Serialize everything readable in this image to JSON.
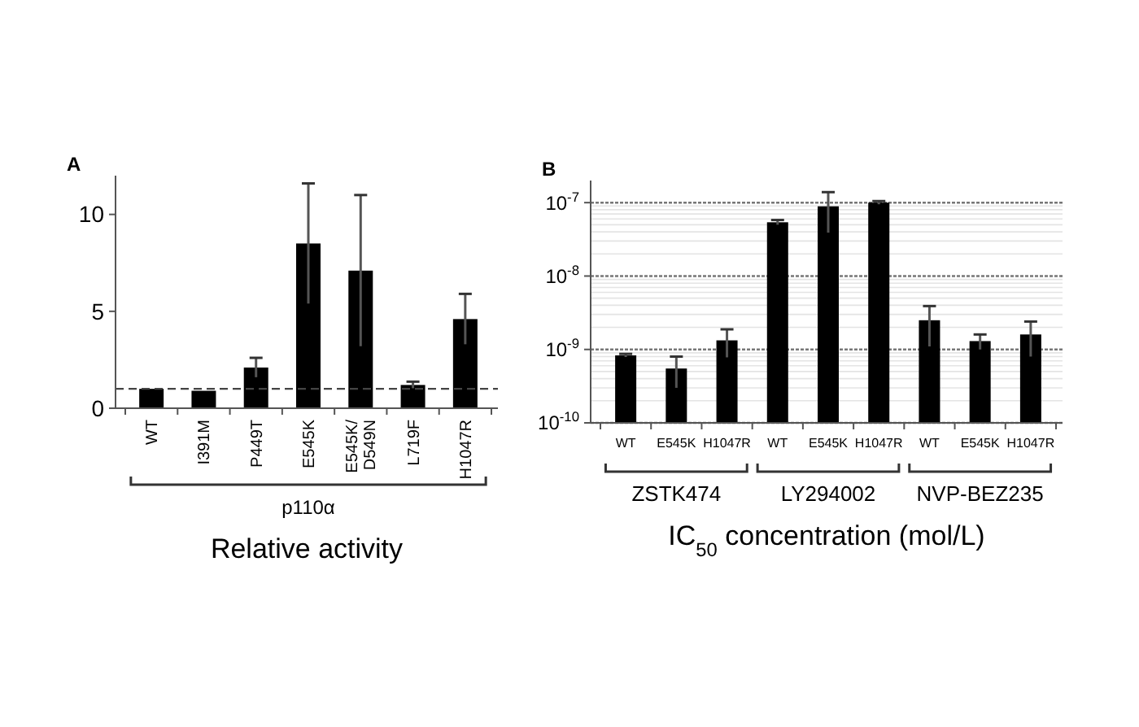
{
  "chart_data": [
    {
      "type": "bar",
      "title": "A",
      "xlabel": "Relative activity",
      "annotations": [
        "p110α"
      ],
      "categories": [
        "WT",
        "I391M",
        "P449T",
        "E545K",
        "E545K/\nD549N",
        "L719F",
        "H1047R"
      ],
      "values": [
        1.0,
        0.9,
        2.1,
        8.5,
        7.1,
        1.2,
        4.6
      ],
      "color": "#000000",
      "errors": [
        null,
        null,
        0.5,
        3.1,
        3.9,
        0.17,
        1.3
      ],
      "ylim": [
        0,
        12
      ],
      "yticks": [
        0,
        5,
        10
      ],
      "grid": false,
      "ref_lines": [
        {
          "axis": "y",
          "value": 1,
          "color": "#444444",
          "line_style": "dashed"
        }
      ]
    },
    {
      "type": "bar",
      "title": "B",
      "xlabel": "IC$_{50}$ concentration (mol/L)",
      "annotations": [
        "ZSTK474",
        "LY294002",
        "NVP-BEZ235"
      ],
      "categories": [
        "WT",
        "E545K",
        "H1047R",
        "WT",
        "E545K",
        "H1047R",
        "WT",
        "E545K",
        "H1047R"
      ],
      "values": [
        8.3e-10,
        5.5e-10,
        1.33e-09,
        5.4e-08,
        8.9e-08,
        1e-07,
        2.5e-09,
        1.3e-09,
        1.6e-09
      ],
      "color": "#000000",
      "errors": [
        4e-11,
        2.5e-10,
        5.5e-10,
        4e-09,
        5e-08,
        5e-09,
        1.4e-09,
        3e-10,
        8e-10
      ],
      "log": true,
      "ylim": [
        1e-10,
        2e-07
      ],
      "yticks": [
        {
          "value": 1e-10,
          "label": "10$^{-10}$"
        },
        {
          "value": 1e-09,
          "label": "10$^{-9}$"
        },
        {
          "value": 1e-08,
          "label": "10$^{-8}$"
        },
        {
          "value": 1e-07,
          "label": "10$^{-7}$"
        }
      ],
      "grid": "y"
    }
  ]
}
